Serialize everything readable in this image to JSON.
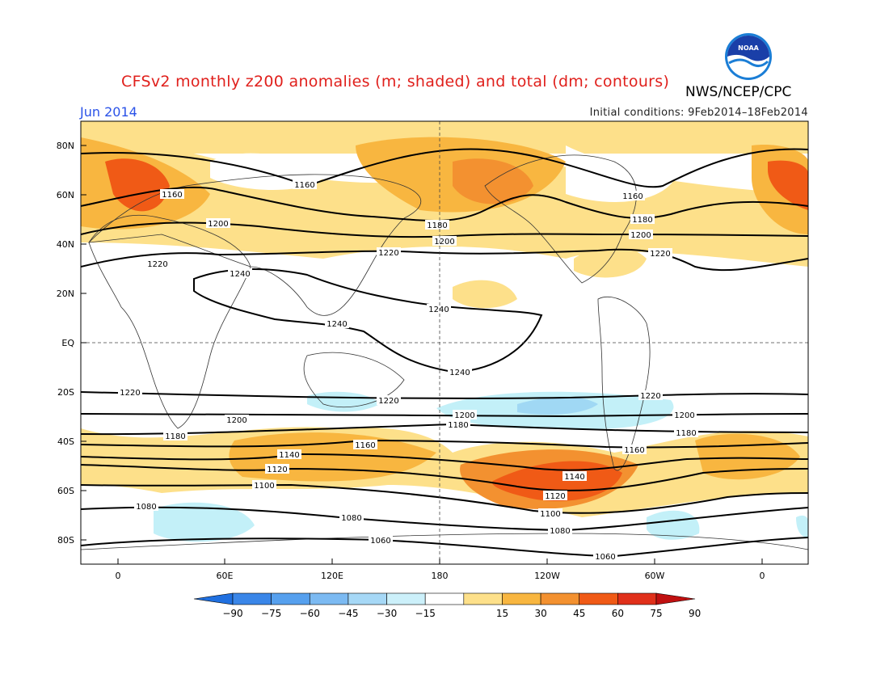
{
  "header": {
    "title": "CFSv2 monthly z200 anomalies (m; shaded) and total (dm; contours)",
    "month": "Jun 2014",
    "center": "NWS/NCEP/CPC",
    "initial_conditions": "Initial conditions: 9Feb2014–18Feb2014",
    "logo_text": "NOAA"
  },
  "map": {
    "lat_labels": [
      "80N",
      "60N",
      "40N",
      "20N",
      "EQ",
      "20S",
      "40S",
      "60S",
      "80S"
    ],
    "lon_labels": [
      "0",
      "60E",
      "120E",
      "180",
      "120W",
      "60W",
      "0"
    ],
    "contours": [
      {
        "label": "1060"
      },
      {
        "label": "1080"
      },
      {
        "label": "1100"
      },
      {
        "label": "1120"
      },
      {
        "label": "1140"
      },
      {
        "label": "1160"
      },
      {
        "label": "1180"
      },
      {
        "label": "1200"
      },
      {
        "label": "1220"
      },
      {
        "label": "1240"
      }
    ],
    "colors": {
      "pos15": "#fde08a",
      "pos30": "#f8b640",
      "pos45": "#f39130",
      "pos60": "#f05a16",
      "pos75": "#e0301a",
      "neg15": "#c3f0f8",
      "neg30": "#a0d8f4",
      "neg45": "#80c0f0"
    }
  },
  "colorbar": {
    "labels": [
      "−90",
      "−75",
      "−60",
      "−45",
      "−30",
      "−15",
      "15",
      "30",
      "45",
      "60",
      "75",
      "90"
    ],
    "colors": [
      "#2070e0",
      "#3a86e8",
      "#56a0ee",
      "#7cbaf2",
      "#a6d8f6",
      "#ccf0fa",
      "#ffffff",
      "#fde08a",
      "#f8b640",
      "#f39130",
      "#f05a16",
      "#e0301a",
      "#c01010"
    ]
  }
}
